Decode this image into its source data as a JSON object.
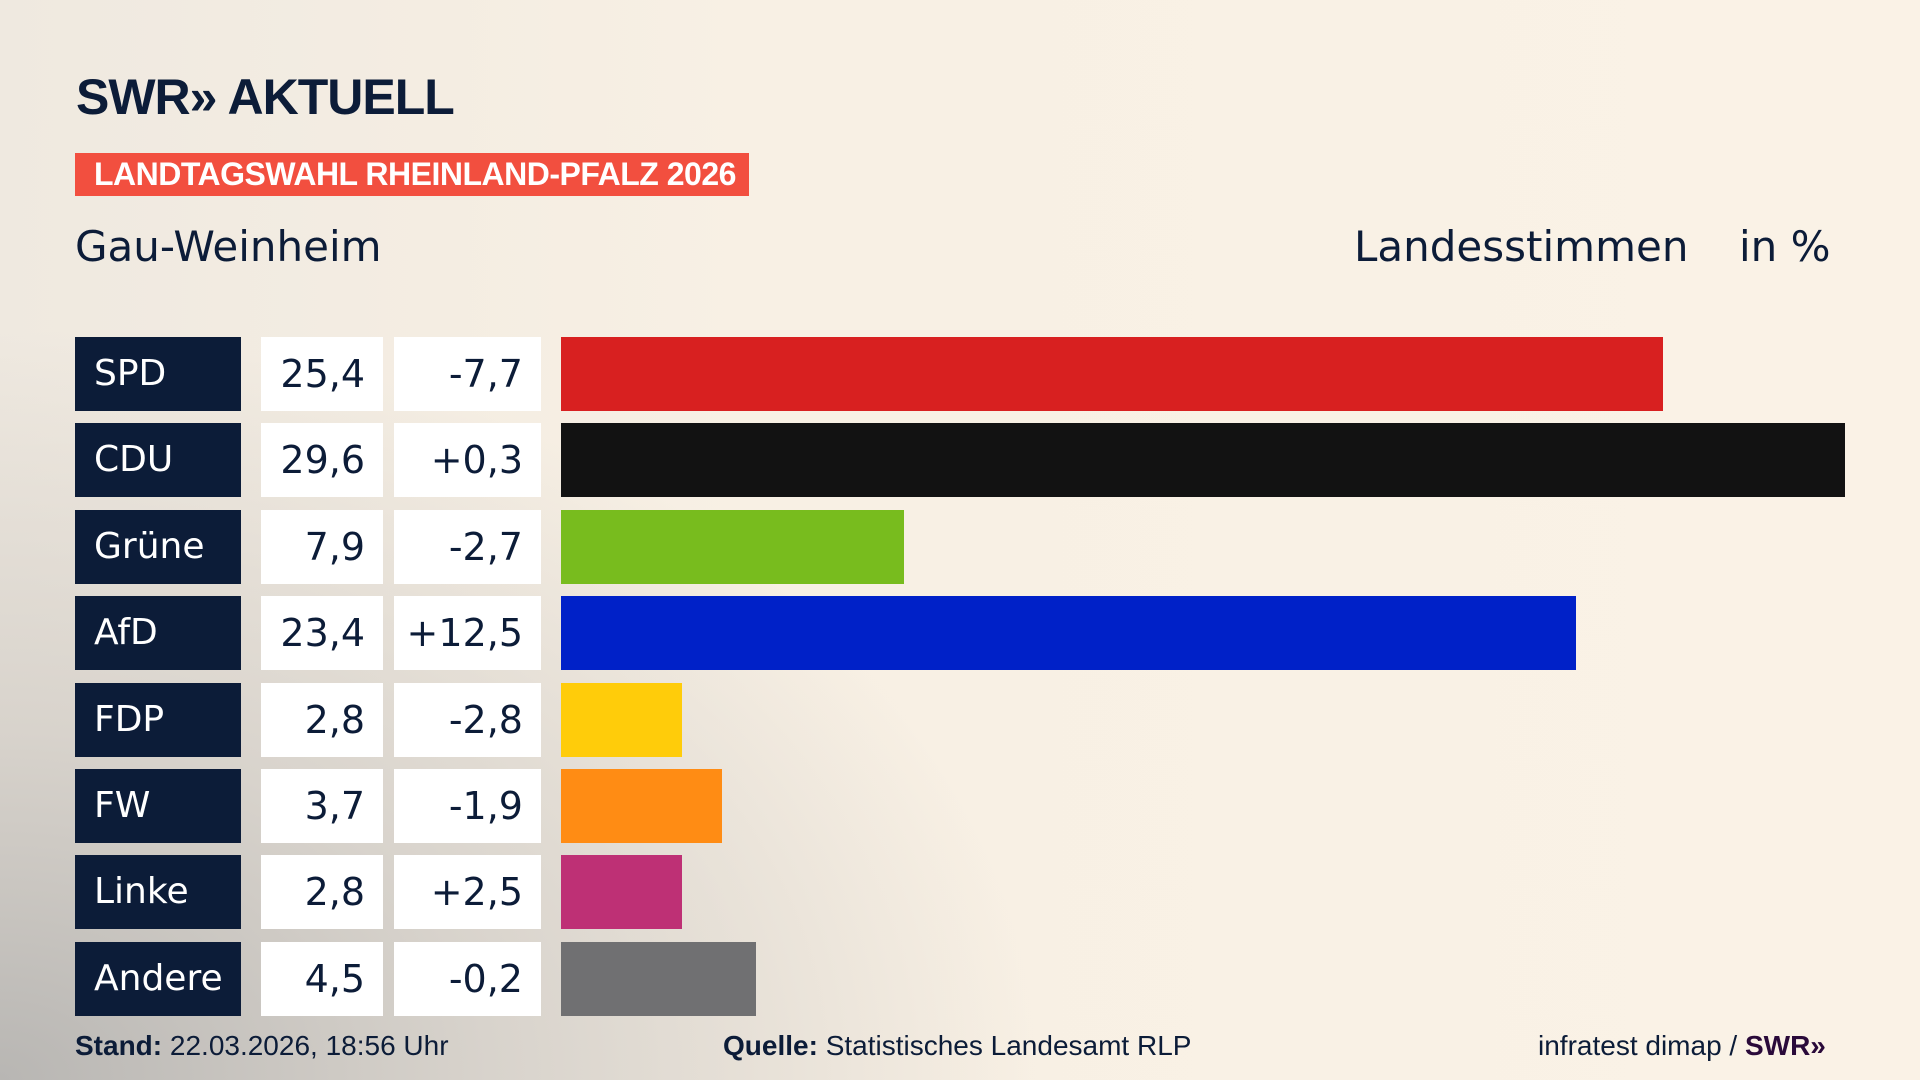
{
  "header": {
    "logo": "SWR» AKTUELL",
    "banner": "LANDTAGSWAHL RHEINLAND-PFALZ 2026",
    "region": "Gau-Weinheim",
    "metric": "Landesstimmen",
    "unit": "in %"
  },
  "chart_data": {
    "type": "bar",
    "orientation": "horizontal",
    "categories": [
      "SPD",
      "CDU",
      "Grüne",
      "AfD",
      "FDP",
      "FW",
      "Linke",
      "Andere"
    ],
    "values": [
      25.4,
      29.6,
      7.9,
      23.4,
      2.8,
      3.7,
      2.8,
      4.5
    ],
    "value_labels": [
      "25,4",
      "29,6",
      "7,9",
      "23,4",
      "2,8",
      "3,7",
      "2,8",
      "4,5"
    ],
    "change_labels": [
      "-7,7",
      "+0,3",
      "-2,7",
      "+12,5",
      "-2,8",
      "-1,9",
      "+2,5",
      "-0,2"
    ],
    "changes": [
      -7.7,
      0.3,
      -2.7,
      12.5,
      -2.8,
      -1.9,
      2.5,
      -0.2
    ],
    "colors": [
      "#d82020",
      "#121212",
      "#78bc1e",
      "#0021c8",
      "#ffcc0a",
      "#ff8c14",
      "#be3075",
      "#707072"
    ],
    "title": "Landesstimmen",
    "unit": "in %",
    "grid": false
  },
  "footer": {
    "stand_label": "Stand:",
    "stand_value": "22.03.2026, 18:56 Uhr",
    "source_label": "Quelle:",
    "source_value": "Statistisches Landesamt RLP",
    "credit": "infratest dimap /",
    "credit_logo": "SWR»"
  }
}
